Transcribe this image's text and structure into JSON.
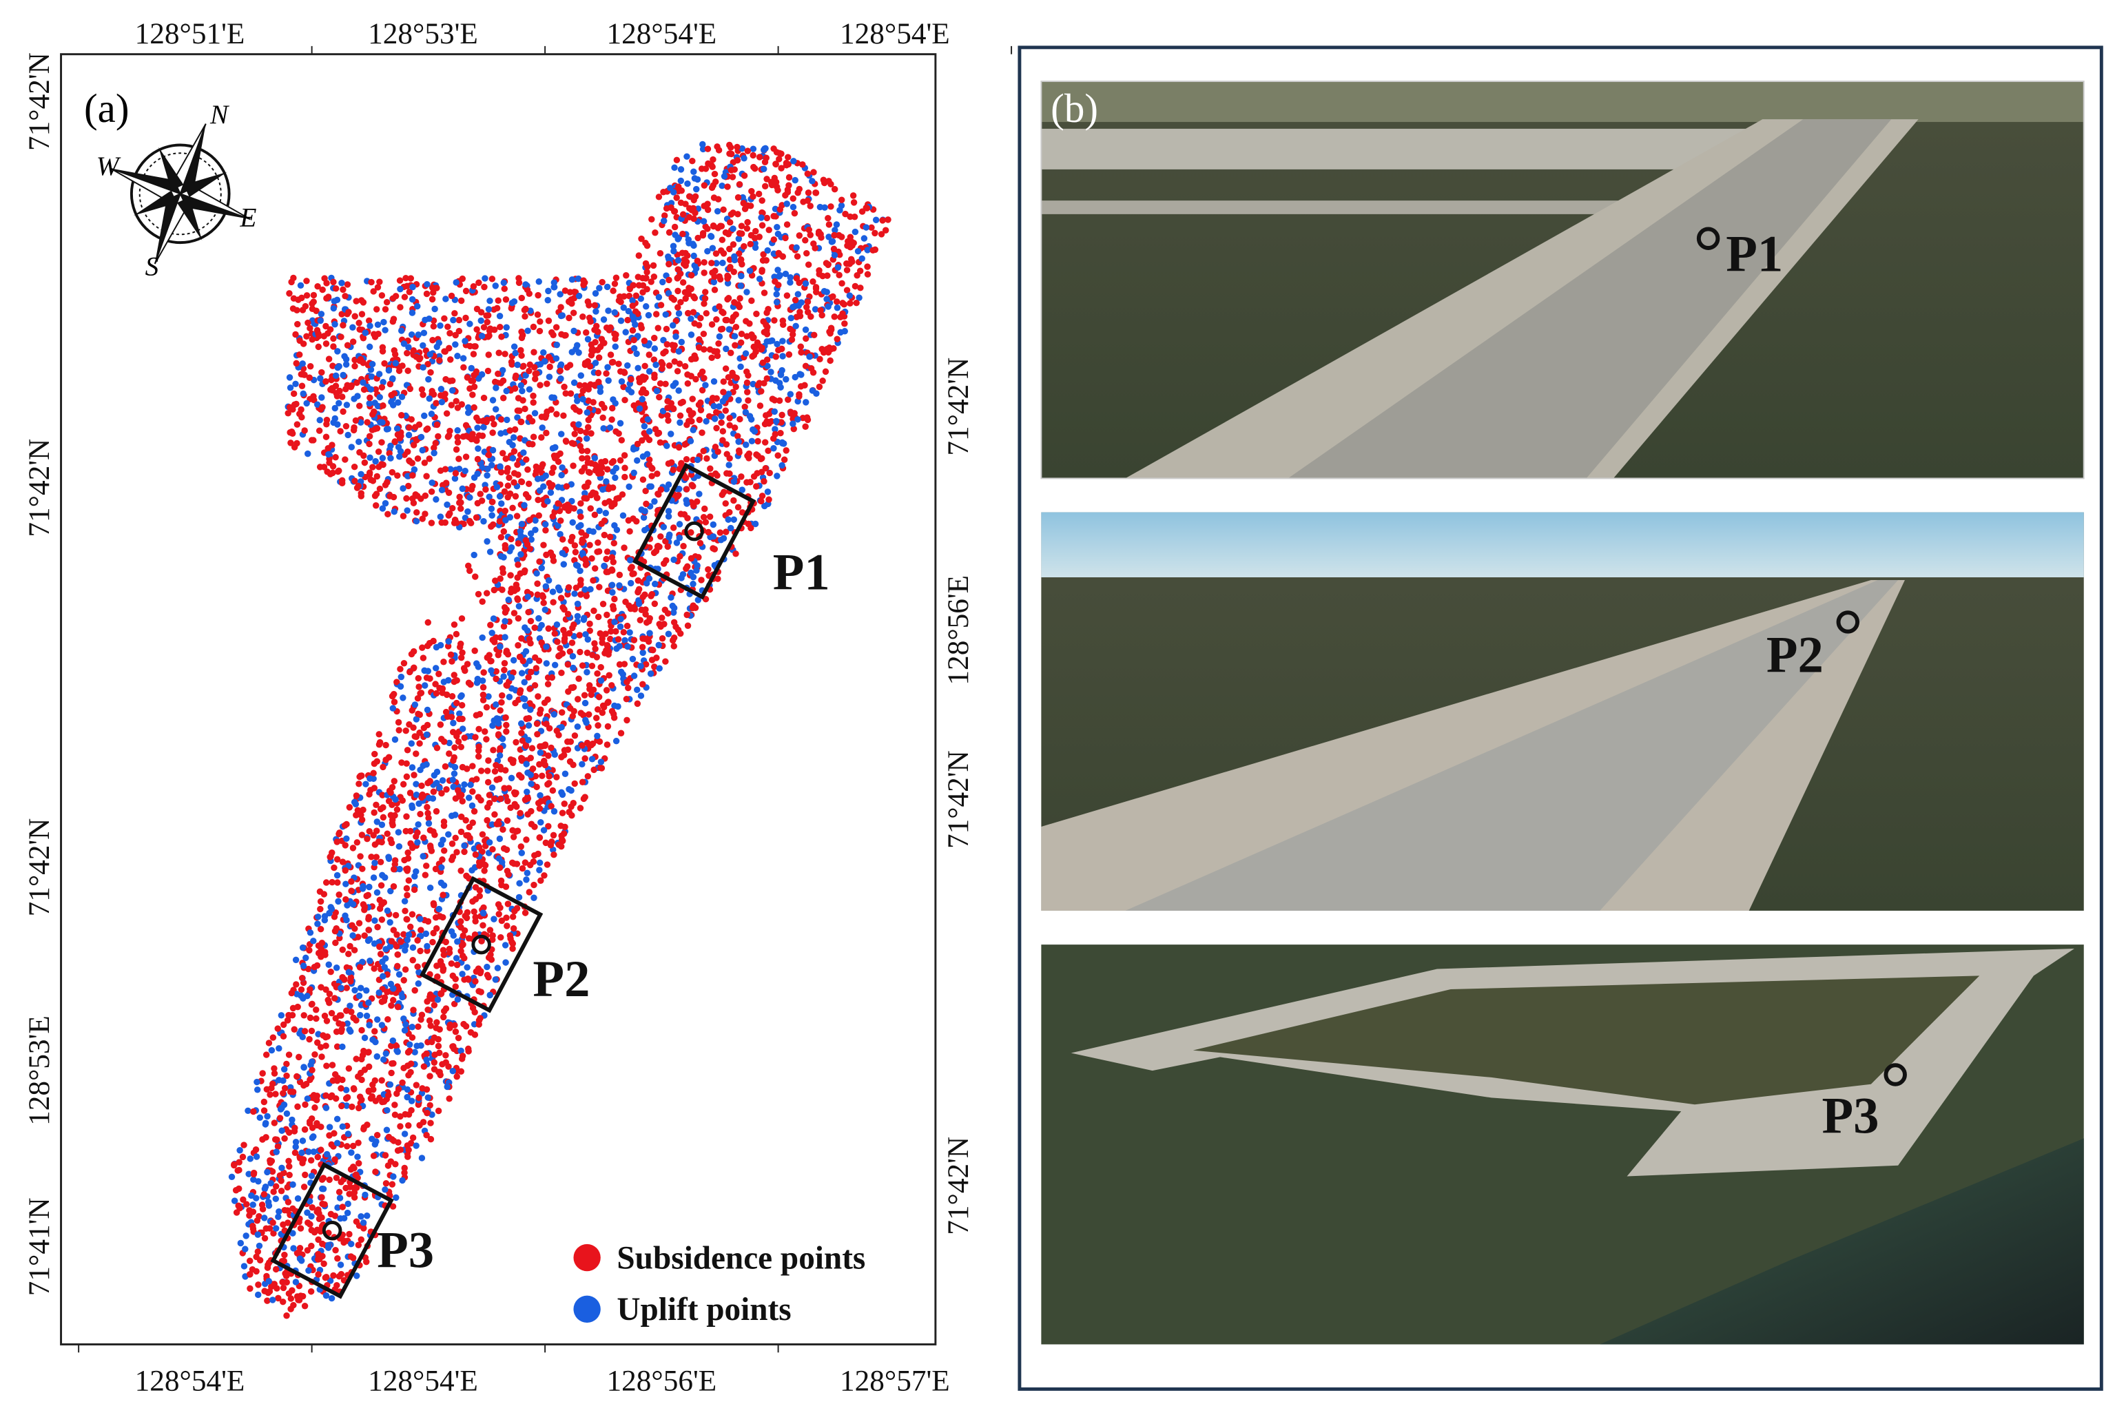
{
  "panel_a": {
    "label": "(a)",
    "top_ticks": [
      "128°51'E",
      "128°53'E",
      "128°54'E",
      "128°54'E"
    ],
    "bottom_ticks": [
      "128°54'E",
      "128°54'E",
      "128°56'E",
      "128°57'E"
    ],
    "left_ticks": [
      "71°42'N",
      "71°42'N",
      "71°42'N",
      "128°53'E",
      "71°41'N"
    ],
    "right_ticks": [
      "71°42'N",
      "128°56'E",
      "71°42'N",
      "71°42'N"
    ],
    "compass": [
      "N",
      "E",
      "S",
      "W"
    ],
    "sites": [
      "P1",
      "P2",
      "P3"
    ],
    "legend": [
      {
        "label": "Subsidence points",
        "color": "#e8141c"
      },
      {
        "label": "Uplift points",
        "color": "#1a5fe0"
      }
    ]
  },
  "panel_b": {
    "label": "(b)",
    "sites": [
      "P1",
      "P2",
      "P3"
    ]
  }
}
